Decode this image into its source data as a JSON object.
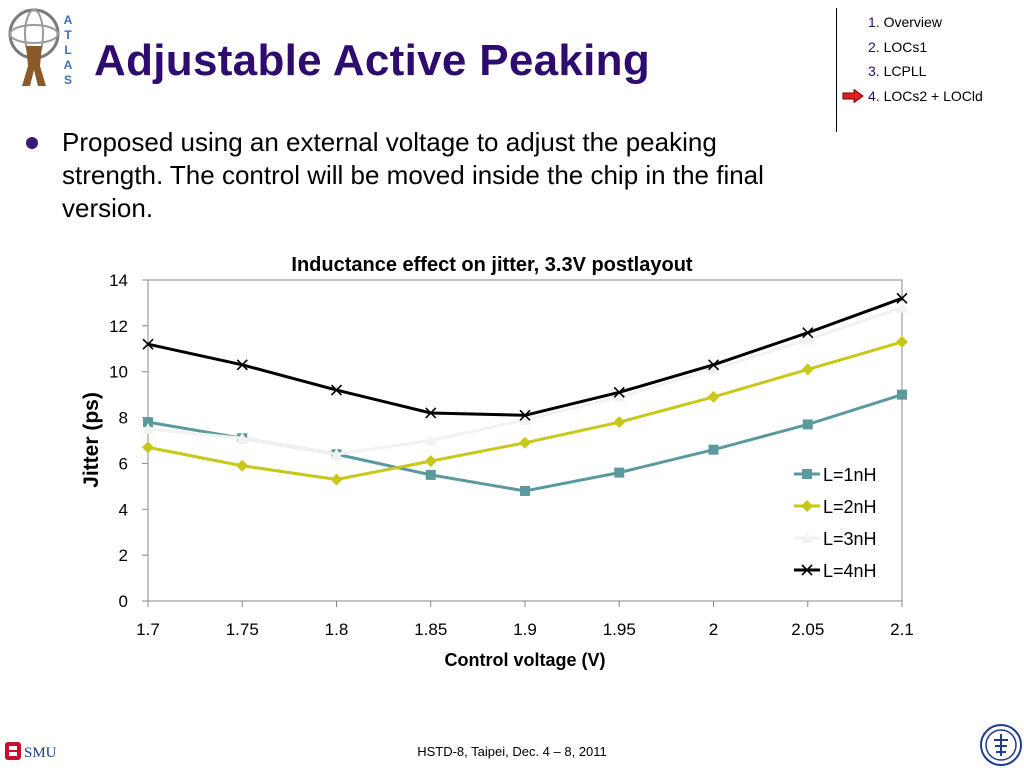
{
  "slide": {
    "title": "Adjustable Active Peaking",
    "bullet": "Proposed using an external voltage to adjust the peaking strength. The control will be moved inside the chip in the final version.",
    "footer": "HSTD-8, Taipei, Dec. 4 – 8, 2011",
    "atlas_letters": [
      "A",
      "T",
      "L",
      "A",
      "S"
    ],
    "smu_logo_text": "SMU",
    "colors": {
      "title": "#2e0b6e",
      "toc_number": "#2e0b6e",
      "arrow": "#e02020"
    }
  },
  "toc": {
    "items": [
      {
        "num": "1.",
        "label": "Overview"
      },
      {
        "num": "2.",
        "label": "LOCs1"
      },
      {
        "num": "3.",
        "label": "LCPLL"
      },
      {
        "num": "4.",
        "label": "LOCs2 + LOCld",
        "current": true
      }
    ]
  },
  "chart_data": {
    "type": "line",
    "title": "Inductance effect on jitter, 3.3V postlayout",
    "xlabel": "Control voltage (V)",
    "ylabel": "Jitter (ps)",
    "x": [
      1.7,
      1.75,
      1.8,
      1.85,
      1.9,
      1.95,
      2,
      2.05,
      2.1
    ],
    "x_tick_labels": [
      "1.7",
      "1.75",
      "1.8",
      "1.85",
      "1.9",
      "1.95",
      "2",
      "2.05",
      "2.1"
    ],
    "y_ticks": [
      0,
      2,
      4,
      6,
      8,
      10,
      12,
      14
    ],
    "ylim": [
      0,
      14
    ],
    "grid": false,
    "legend_position": "right",
    "series": [
      {
        "name": "L=1nH",
        "color": "#5b9a9c",
        "marker": "square",
        "values": [
          7.8,
          7.1,
          6.4,
          5.5,
          4.8,
          5.6,
          6.6,
          7.7,
          9.0
        ]
      },
      {
        "name": "L=2nH",
        "color": "#c8c81a",
        "marker": "diamond",
        "values": [
          6.7,
          5.9,
          5.3,
          6.1,
          6.9,
          7.8,
          8.9,
          10.1,
          11.3
        ]
      },
      {
        "name": "L=3nH",
        "color": "#f2f2f2",
        "marker": "triangle",
        "values": [
          7.5,
          7.1,
          6.4,
          7.0,
          7.9,
          8.9,
          10.1,
          11.4,
          12.8
        ]
      },
      {
        "name": "L=4nH",
        "color": "#000000",
        "marker": "x",
        "values": [
          11.2,
          10.3,
          9.2,
          8.2,
          8.1,
          9.1,
          10.3,
          11.7,
          13.2
        ]
      }
    ]
  }
}
